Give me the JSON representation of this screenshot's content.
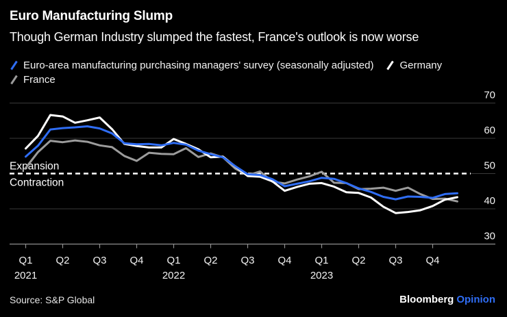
{
  "header": {
    "title": "Euro Manufacturing Slump",
    "subtitle": "Though German Industry slumped the fastest, France's outlook is now worse"
  },
  "legend": {
    "items": [
      {
        "label": "Euro-area manufacturing purchasing managers' survey (seasonally adjusted)",
        "color": "#2f6df4"
      },
      {
        "label": "Germany",
        "color": "#ffffff"
      },
      {
        "label": "France",
        "color": "#9c9c9c"
      }
    ]
  },
  "footer": {
    "source": "Source: S&P Global",
    "brand": "Bloomberg",
    "brand_suffix": "Opinion"
  },
  "colors": {
    "background": "#000000",
    "accent_blue": "#2f6df4",
    "gridline": "#3a3a3a",
    "axis": "#8f8f8f",
    "tick_text": "#f2f2f2",
    "threshold_line": "#ffffff"
  },
  "chart_data": {
    "type": "line",
    "title": "Euro Manufacturing Slump",
    "subtitle": "Though German Industry slumped the fastest, France's outlook is now worse",
    "frequency": "monthly",
    "x_start": "2021-01",
    "x_end": "2023-12",
    "x_tick_labels": [
      "Q1",
      "Q2",
      "Q3",
      "Q4",
      "Q1",
      "Q2",
      "Q3",
      "Q4",
      "Q1",
      "Q2",
      "Q3",
      "Q4"
    ],
    "x_year_labels": [
      {
        "label": "2021",
        "tick_index": 0
      },
      {
        "label": "2022",
        "tick_index": 4
      },
      {
        "label": "2023",
        "tick_index": 8
      }
    ],
    "y_ticks": [
      30,
      40,
      50,
      60,
      70
    ],
    "ylim": [
      27,
      72
    ],
    "grid": "horizontal",
    "legend_position": "top-left",
    "threshold": {
      "value": 50,
      "label_above": "Expansion",
      "label_below": "Contraction",
      "style": "dashed"
    },
    "series": [
      {
        "name": "Euro-area manufacturing purchasing managers' survey (seasonally adjusted)",
        "color": "#2f6df4",
        "values": [
          54.8,
          57.9,
          62.5,
          62.9,
          63.1,
          63.4,
          62.8,
          61.4,
          58.6,
          58.3,
          58.4,
          58.0,
          58.7,
          58.2,
          56.5,
          55.5,
          54.6,
          52.1,
          49.8,
          49.6,
          48.4,
          46.4,
          47.1,
          47.8,
          48.8,
          48.5,
          47.3,
          45.8,
          44.8,
          43.4,
          42.7,
          43.5,
          43.4,
          43.1,
          44.2,
          44.4
        ]
      },
      {
        "name": "Germany",
        "color": "#ffffff",
        "values": [
          57.1,
          60.7,
          66.6,
          66.2,
          64.4,
          65.1,
          65.9,
          62.6,
          58.4,
          57.8,
          57.4,
          57.4,
          59.8,
          58.4,
          56.9,
          54.6,
          54.8,
          52.0,
          49.3,
          49.1,
          47.8,
          45.1,
          46.2,
          47.1,
          47.3,
          46.3,
          44.7,
          44.5,
          43.2,
          40.6,
          38.8,
          39.1,
          39.6,
          40.8,
          42.6,
          43.3
        ]
      },
      {
        "name": "France",
        "color": "#9c9c9c",
        "values": [
          51.6,
          56.1,
          59.3,
          58.9,
          59.4,
          59.0,
          58.0,
          57.5,
          55.0,
          53.6,
          55.9,
          55.6,
          55.5,
          57.2,
          54.7,
          55.7,
          54.6,
          51.4,
          49.5,
          50.6,
          47.7,
          47.2,
          48.3,
          49.2,
          50.5,
          47.4,
          47.3,
          45.6,
          45.7,
          46.0,
          45.1,
          46.0,
          44.2,
          42.8,
          42.9,
          42.1
        ]
      }
    ]
  }
}
